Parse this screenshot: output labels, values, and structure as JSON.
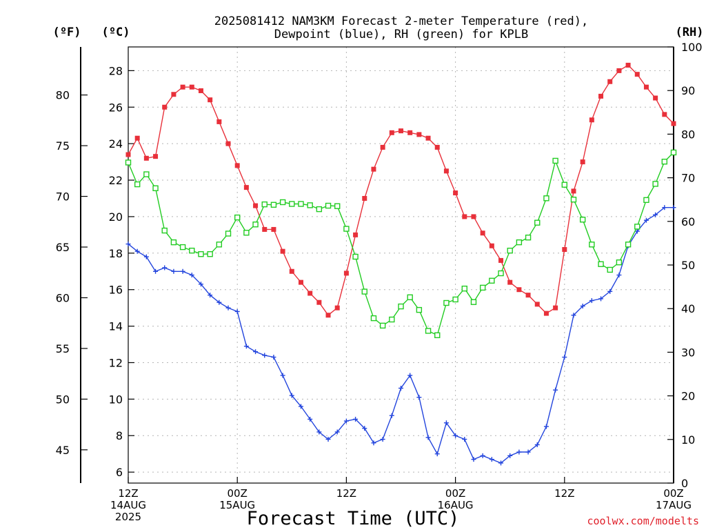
{
  "chart_data": {
    "type": "line",
    "title_line1": "2025081412 NAM3KM Forecast 2-meter Temperature (red),",
    "title_line2": "Dewpoint (blue), RH (green) for KPLB",
    "unit_f": "(ºF)",
    "unit_c": "(ºC)",
    "unit_rh": "(RH)",
    "xlabel": "Forecast Time (UTC)",
    "credit": "coolwx.com/modelts",
    "x_start_hour": 0,
    "x_end_hour": 60,
    "x_ticks": [
      {
        "hour": 0,
        "lines": [
          "12Z",
          "14AUG",
          "2025"
        ]
      },
      {
        "hour": 12,
        "lines": [
          "00Z",
          "15AUG"
        ]
      },
      {
        "hour": 24,
        "lines": [
          "12Z"
        ]
      },
      {
        "hour": 36,
        "lines": [
          "00Z",
          "16AUG"
        ]
      },
      {
        "hour": 48,
        "lines": [
          "12Z"
        ]
      },
      {
        "hour": 60,
        "lines": [
          "00Z",
          "17AUG"
        ]
      }
    ],
    "ylim_celsius": [
      5.4,
      29.3
    ],
    "yticks_celsius": [
      "6",
      "8",
      "10",
      "12",
      "14",
      "16",
      "18",
      "20",
      "22",
      "24",
      "26",
      "28"
    ],
    "yticks_fahrenheit": [
      "45",
      "50",
      "55",
      "60",
      "65",
      "70",
      "75",
      "80"
    ],
    "ylim_rh": [
      0,
      100
    ],
    "yticks_rh": [
      "0",
      "10",
      "20",
      "30",
      "40",
      "50",
      "60",
      "70",
      "80",
      "90",
      "100"
    ],
    "grid": true,
    "colors": {
      "temperature": "#e8303a",
      "dewpoint": "#2244dd",
      "rh": "#22cc22"
    },
    "series": [
      {
        "axis": "celsius",
        "color": "#e8303a",
        "marker": "filled-square",
        "values": [
          23.4,
          24.3,
          23.2,
          23.3,
          26.0,
          26.7,
          27.1,
          27.1,
          26.9,
          26.4,
          25.2,
          24.0,
          22.8,
          21.6,
          20.6,
          19.3,
          19.3,
          18.1,
          17.0,
          16.4,
          15.8,
          15.3,
          14.6,
          15.0,
          16.9,
          19.0,
          21.0,
          22.6,
          23.8,
          24.6,
          24.7,
          24.6,
          24.5,
          24.3,
          23.8,
          22.5,
          21.3,
          20.0,
          20.0,
          19.1,
          18.4,
          17.6,
          16.4,
          16.0,
          15.7,
          15.2,
          14.7,
          15.0,
          18.2,
          21.4,
          23.0,
          25.3,
          26.6,
          27.4,
          28.0,
          28.3,
          27.8,
          27.1,
          26.5,
          25.6,
          25.1
        ]
      },
      {
        "axis": "celsius",
        "color": "#2244dd",
        "marker": "plus",
        "values": [
          18.5,
          18.1,
          17.8,
          17.0,
          17.2,
          17.0,
          17.0,
          16.8,
          16.3,
          15.7,
          15.3,
          15.0,
          14.8,
          12.9,
          12.6,
          12.4,
          12.3,
          11.3,
          10.2,
          9.6,
          8.9,
          8.2,
          7.8,
          8.2,
          8.8,
          8.9,
          8.4,
          7.6,
          7.8,
          9.1,
          10.6,
          11.3,
          10.1,
          7.9,
          7.0,
          8.7,
          8.0,
          7.8,
          6.7,
          6.9,
          6.7,
          6.5,
          6.9,
          7.1,
          7.1,
          7.5,
          8.5,
          10.5,
          12.3,
          14.6,
          15.1,
          15.4,
          15.5,
          15.9,
          16.8,
          18.4,
          19.2,
          19.8,
          20.1,
          20.5,
          20.5
        ]
      },
      {
        "axis": "rh",
        "color": "#22cc22",
        "marker": "open-square",
        "values": [
          73.5,
          68.5,
          70.8,
          67.6,
          57.9,
          55.2,
          54.1,
          53.3,
          52.5,
          52.5,
          54.7,
          57.2,
          60.9,
          57.4,
          59.3,
          63.9,
          63.8,
          64.4,
          64.0,
          64.0,
          63.7,
          62.8,
          63.6,
          63.5,
          58.3,
          51.9,
          43.9,
          37.8,
          36.1,
          37.5,
          40.5,
          42.6,
          39.7,
          34.9,
          33.9,
          41.3,
          42.1,
          44.6,
          41.5,
          44.8,
          46.4,
          48.1,
          53.3,
          55.2,
          56.3,
          59.7,
          65.3,
          73.9,
          68.4,
          65.0,
          60.4,
          54.7,
          50.2,
          48.9,
          50.6,
          54.7,
          58.8,
          64.9,
          68.6,
          73.7,
          75.8
        ]
      }
    ]
  }
}
